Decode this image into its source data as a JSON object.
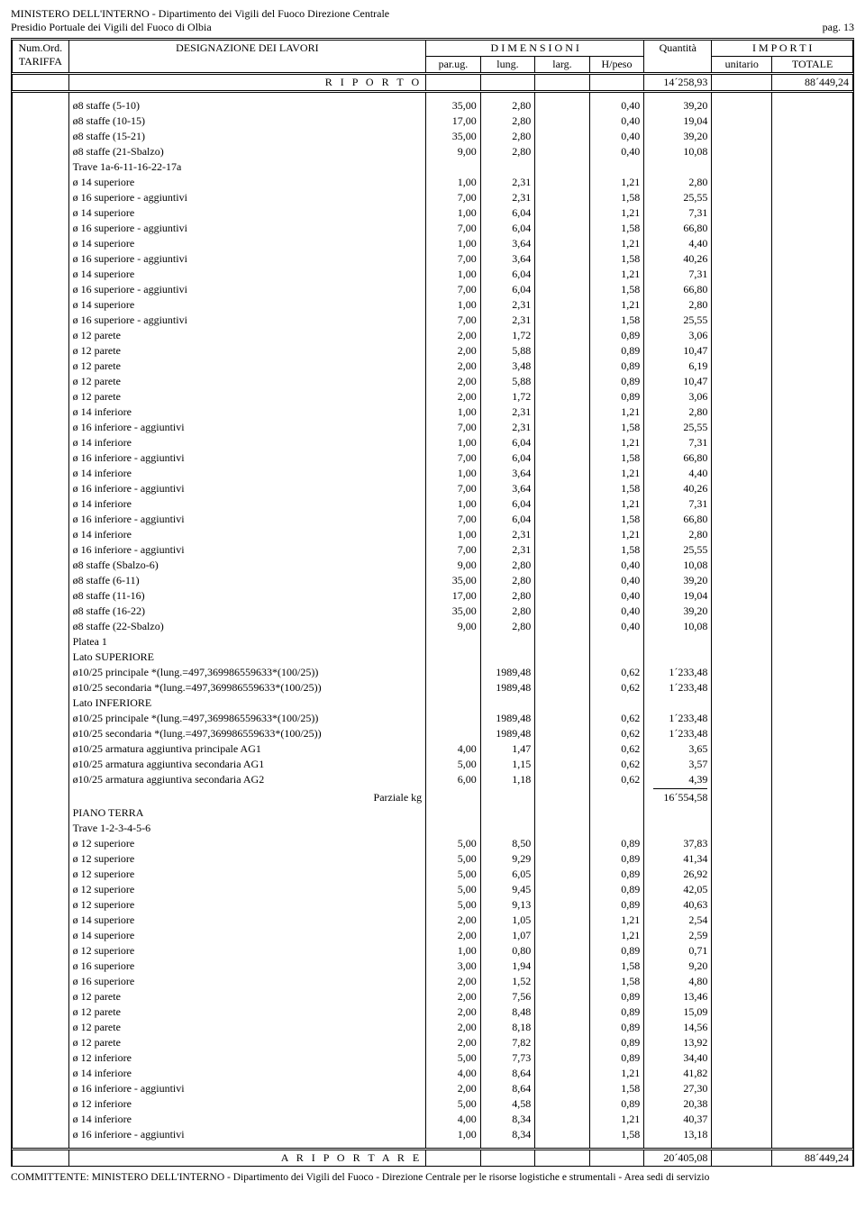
{
  "header": {
    "line1": "MINISTERO DELL'INTERNO - Dipartimento dei Vigili del Fuoco Direzione Centrale",
    "line2": "Presidio Portuale dei Vigili del Fuoco di Olbia",
    "page": "pag. 13"
  },
  "columns": {
    "tariffa1": "Num.Ord.",
    "tariffa2": "TARIFFA",
    "designazione": "DESIGNAZIONE DEI LAVORI",
    "dimensioni": "D I M E N S I O N I",
    "parug": "par.ug.",
    "lung": "lung.",
    "larg": "larg.",
    "hpeso": "H/peso",
    "quantita": "Quantità",
    "importi": "I M P O R T I",
    "unitario": "unitario",
    "totale": "TOTALE"
  },
  "riporto": {
    "label": "R I P O R T O",
    "quantita": "14´258,93",
    "totale": "88´449,24"
  },
  "rows": [
    {
      "d": "ø8 staffe (5-10)",
      "p": "35,00",
      "l": "2,80",
      "h": "0,40",
      "q": "39,20"
    },
    {
      "d": "ø8 staffe (10-15)",
      "p": "17,00",
      "l": "2,80",
      "h": "0,40",
      "q": "19,04"
    },
    {
      "d": "ø8 staffe (15-21)",
      "p": "35,00",
      "l": "2,80",
      "h": "0,40",
      "q": "39,20"
    },
    {
      "d": "ø8 staffe (21-Sbalzo)",
      "p": "9,00",
      "l": "2,80",
      "h": "0,40",
      "q": "10,08"
    },
    {
      "d": "Trave 1a-6-11-16-22-17a"
    },
    {
      "d": "ø 14 superiore",
      "p": "1,00",
      "l": "2,31",
      "h": "1,21",
      "q": "2,80"
    },
    {
      "d": "ø 16 superiore - aggiuntivi",
      "p": "7,00",
      "l": "2,31",
      "h": "1,58",
      "q": "25,55"
    },
    {
      "d": "ø 14 superiore",
      "p": "1,00",
      "l": "6,04",
      "h": "1,21",
      "q": "7,31"
    },
    {
      "d": "ø 16 superiore - aggiuntivi",
      "p": "7,00",
      "l": "6,04",
      "h": "1,58",
      "q": "66,80"
    },
    {
      "d": "ø 14 superiore",
      "p": "1,00",
      "l": "3,64",
      "h": "1,21",
      "q": "4,40"
    },
    {
      "d": "ø 16 superiore - aggiuntivi",
      "p": "7,00",
      "l": "3,64",
      "h": "1,58",
      "q": "40,26"
    },
    {
      "d": "ø 14 superiore",
      "p": "1,00",
      "l": "6,04",
      "h": "1,21",
      "q": "7,31"
    },
    {
      "d": "ø 16 superiore - aggiuntivi",
      "p": "7,00",
      "l": "6,04",
      "h": "1,58",
      "q": "66,80"
    },
    {
      "d": "ø 14 superiore",
      "p": "1,00",
      "l": "2,31",
      "h": "1,21",
      "q": "2,80"
    },
    {
      "d": "ø 16 superiore - aggiuntivi",
      "p": "7,00",
      "l": "2,31",
      "h": "1,58",
      "q": "25,55"
    },
    {
      "d": "ø 12 parete",
      "p": "2,00",
      "l": "1,72",
      "h": "0,89",
      "q": "3,06"
    },
    {
      "d": "ø 12 parete",
      "p": "2,00",
      "l": "5,88",
      "h": "0,89",
      "q": "10,47"
    },
    {
      "d": "ø 12 parete",
      "p": "2,00",
      "l": "3,48",
      "h": "0,89",
      "q": "6,19"
    },
    {
      "d": "ø 12 parete",
      "p": "2,00",
      "l": "5,88",
      "h": "0,89",
      "q": "10,47"
    },
    {
      "d": "ø 12 parete",
      "p": "2,00",
      "l": "1,72",
      "h": "0,89",
      "q": "3,06"
    },
    {
      "d": "ø 14 inferiore",
      "p": "1,00",
      "l": "2,31",
      "h": "1,21",
      "q": "2,80"
    },
    {
      "d": "ø 16 inferiore - aggiuntivi",
      "p": "7,00",
      "l": "2,31",
      "h": "1,58",
      "q": "25,55"
    },
    {
      "d": "ø 14 inferiore",
      "p": "1,00",
      "l": "6,04",
      "h": "1,21",
      "q": "7,31"
    },
    {
      "d": "ø 16 inferiore - aggiuntivi",
      "p": "7,00",
      "l": "6,04",
      "h": "1,58",
      "q": "66,80"
    },
    {
      "d": "ø 14 inferiore",
      "p": "1,00",
      "l": "3,64",
      "h": "1,21",
      "q": "4,40"
    },
    {
      "d": "ø 16 inferiore - aggiuntivi",
      "p": "7,00",
      "l": "3,64",
      "h": "1,58",
      "q": "40,26"
    },
    {
      "d": "ø 14 inferiore",
      "p": "1,00",
      "l": "6,04",
      "h": "1,21",
      "q": "7,31"
    },
    {
      "d": "ø 16 inferiore - aggiuntivi",
      "p": "7,00",
      "l": "6,04",
      "h": "1,58",
      "q": "66,80"
    },
    {
      "d": "ø 14 inferiore",
      "p": "1,00",
      "l": "2,31",
      "h": "1,21",
      "q": "2,80"
    },
    {
      "d": "ø 16 inferiore - aggiuntivi",
      "p": "7,00",
      "l": "2,31",
      "h": "1,58",
      "q": "25,55"
    },
    {
      "d": "ø8 staffe (Sbalzo-6)",
      "p": "9,00",
      "l": "2,80",
      "h": "0,40",
      "q": "10,08"
    },
    {
      "d": "ø8 staffe (6-11)",
      "p": "35,00",
      "l": "2,80",
      "h": "0,40",
      "q": "39,20"
    },
    {
      "d": "ø8 staffe (11-16)",
      "p": "17,00",
      "l": "2,80",
      "h": "0,40",
      "q": "19,04"
    },
    {
      "d": "ø8 staffe (16-22)",
      "p": "35,00",
      "l": "2,80",
      "h": "0,40",
      "q": "39,20"
    },
    {
      "d": "ø8 staffe (22-Sbalzo)",
      "p": "9,00",
      "l": "2,80",
      "h": "0,40",
      "q": "10,08"
    },
    {
      "d": "Platea 1"
    },
    {
      "d": "Lato SUPERIORE"
    },
    {
      "d": "ø10/25 principale *(lung.=497,369986559633*(100/25))",
      "l": "1989,48",
      "h": "0,62",
      "q": "1´233,48"
    },
    {
      "d": "ø10/25 secondaria *(lung.=497,369986559633*(100/25))",
      "l": "1989,48",
      "h": "0,62",
      "q": "1´233,48"
    },
    {
      "d": "Lato INFERIORE"
    },
    {
      "d": "ø10/25 principale *(lung.=497,369986559633*(100/25))",
      "l": "1989,48",
      "h": "0,62",
      "q": "1´233,48"
    },
    {
      "d": "ø10/25 secondaria *(lung.=497,369986559633*(100/25))",
      "l": "1989,48",
      "h": "0,62",
      "q": "1´233,48"
    },
    {
      "d": "ø10/25 armatura aggiuntiva principale AG1",
      "p": "4,00",
      "l": "1,47",
      "h": "0,62",
      "q": "3,65"
    },
    {
      "d": "ø10/25 armatura aggiuntiva secondaria AG1",
      "p": "5,00",
      "l": "1,15",
      "h": "0,62",
      "q": "3,57"
    },
    {
      "d": "ø10/25 armatura aggiuntiva secondaria AG2",
      "p": "6,00",
      "l": "1,18",
      "h": "0,62",
      "q": "4,39"
    }
  ],
  "parziale": {
    "label": "Parziale kg",
    "value": "16´554,58"
  },
  "rows2": [
    {
      "d": "PIANO TERRA"
    },
    {
      "d": "Trave 1-2-3-4-5-6"
    },
    {
      "d": "ø 12 superiore",
      "p": "5,00",
      "l": "8,50",
      "h": "0,89",
      "q": "37,83"
    },
    {
      "d": "ø 12 superiore",
      "p": "5,00",
      "l": "9,29",
      "h": "0,89",
      "q": "41,34"
    },
    {
      "d": "ø 12 superiore",
      "p": "5,00",
      "l": "6,05",
      "h": "0,89",
      "q": "26,92"
    },
    {
      "d": "ø 12 superiore",
      "p": "5,00",
      "l": "9,45",
      "h": "0,89",
      "q": "42,05"
    },
    {
      "d": "ø 12 superiore",
      "p": "5,00",
      "l": "9,13",
      "h": "0,89",
      "q": "40,63"
    },
    {
      "d": "ø 14 superiore",
      "p": "2,00",
      "l": "1,05",
      "h": "1,21",
      "q": "2,54"
    },
    {
      "d": "ø 14 superiore",
      "p": "2,00",
      "l": "1,07",
      "h": "1,21",
      "q": "2,59"
    },
    {
      "d": "ø 12 superiore",
      "p": "1,00",
      "l": "0,80",
      "h": "0,89",
      "q": "0,71"
    },
    {
      "d": "ø 16 superiore",
      "p": "3,00",
      "l": "1,94",
      "h": "1,58",
      "q": "9,20"
    },
    {
      "d": "ø 16 superiore",
      "p": "2,00",
      "l": "1,52",
      "h": "1,58",
      "q": "4,80"
    },
    {
      "d": "ø 12 parete",
      "p": "2,00",
      "l": "7,56",
      "h": "0,89",
      "q": "13,46"
    },
    {
      "d": "ø 12 parete",
      "p": "2,00",
      "l": "8,48",
      "h": "0,89",
      "q": "15,09"
    },
    {
      "d": "ø 12 parete",
      "p": "2,00",
      "l": "8,18",
      "h": "0,89",
      "q": "14,56"
    },
    {
      "d": "ø 12 parete",
      "p": "2,00",
      "l": "7,82",
      "h": "0,89",
      "q": "13,92"
    },
    {
      "d": "ø 12 inferiore",
      "p": "5,00",
      "l": "7,73",
      "h": "0,89",
      "q": "34,40"
    },
    {
      "d": "ø 14 inferiore",
      "p": "4,00",
      "l": "8,64",
      "h": "1,21",
      "q": "41,82"
    },
    {
      "d": "ø 16 inferiore - aggiuntivi",
      "p": "2,00",
      "l": "8,64",
      "h": "1,58",
      "q": "27,30"
    },
    {
      "d": "ø 12 inferiore",
      "p": "5,00",
      "l": "4,58",
      "h": "0,89",
      "q": "20,38"
    },
    {
      "d": "ø 14 inferiore",
      "p": "4,00",
      "l": "8,34",
      "h": "1,21",
      "q": "40,37"
    },
    {
      "d": "ø 16 inferiore - aggiuntivi",
      "p": "1,00",
      "l": "8,34",
      "h": "1,58",
      "q": "13,18"
    }
  ],
  "riportare": {
    "label": "A   R I P O R T A R E",
    "quantita": "20´405,08",
    "totale": "88´449,24"
  },
  "footer": "COMMITTENTE: MINISTERO DELL'INTERNO - Dipartimento dei Vigili del Fuoco - Direzione Centrale per le risorse logistiche e strumentali - Area sedi di servizio"
}
